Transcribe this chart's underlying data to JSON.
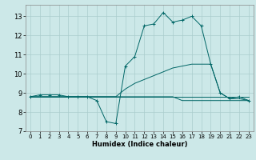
{
  "xlabel": "Humidex (Indice chaleur)",
  "background_color": "#cce8e8",
  "grid_color": "#aacccc",
  "line_color": "#006666",
  "xlim": [
    -0.5,
    23.5
  ],
  "ylim": [
    7,
    13.6
  ],
  "yticks": [
    7,
    8,
    9,
    10,
    11,
    12,
    13
  ],
  "xticks": [
    0,
    1,
    2,
    3,
    4,
    5,
    6,
    7,
    8,
    9,
    10,
    11,
    12,
    13,
    14,
    15,
    16,
    17,
    18,
    19,
    20,
    21,
    22,
    23
  ],
  "series": {
    "main": {
      "x": [
        0,
        1,
        2,
        3,
        4,
        5,
        6,
        7,
        8,
        9,
        10,
        11,
        12,
        13,
        14,
        15,
        16,
        17,
        18,
        19,
        20,
        21,
        22,
        23
      ],
      "y": [
        8.8,
        8.9,
        8.9,
        8.9,
        8.8,
        8.8,
        8.8,
        8.6,
        7.5,
        7.4,
        10.4,
        10.9,
        12.5,
        12.6,
        13.2,
        12.7,
        12.8,
        13.0,
        12.5,
        10.5,
        9.0,
        8.7,
        8.8,
        8.6
      ]
    },
    "line2": {
      "x": [
        0,
        1,
        2,
        3,
        4,
        5,
        6,
        7,
        8,
        9,
        10,
        11,
        12,
        13,
        14,
        15,
        16,
        17,
        18,
        19,
        20,
        21,
        22,
        23
      ],
      "y": [
        8.8,
        8.8,
        8.8,
        8.8,
        8.8,
        8.8,
        8.8,
        8.8,
        8.8,
        8.8,
        9.2,
        9.5,
        9.7,
        9.9,
        10.1,
        10.3,
        10.4,
        10.5,
        10.5,
        10.5,
        9.0,
        8.7,
        8.7,
        8.6
      ]
    },
    "line3": {
      "x": [
        0,
        23
      ],
      "y": [
        8.8,
        8.8
      ]
    },
    "line4": {
      "x": [
        0,
        9,
        10,
        11,
        12,
        13,
        14,
        15,
        16,
        17,
        18,
        19,
        20,
        21,
        22,
        23
      ],
      "y": [
        8.8,
        8.8,
        8.8,
        8.8,
        8.8,
        8.8,
        8.8,
        8.8,
        8.6,
        8.6,
        8.6,
        8.6,
        8.6,
        8.6,
        8.6,
        8.6
      ]
    }
  }
}
